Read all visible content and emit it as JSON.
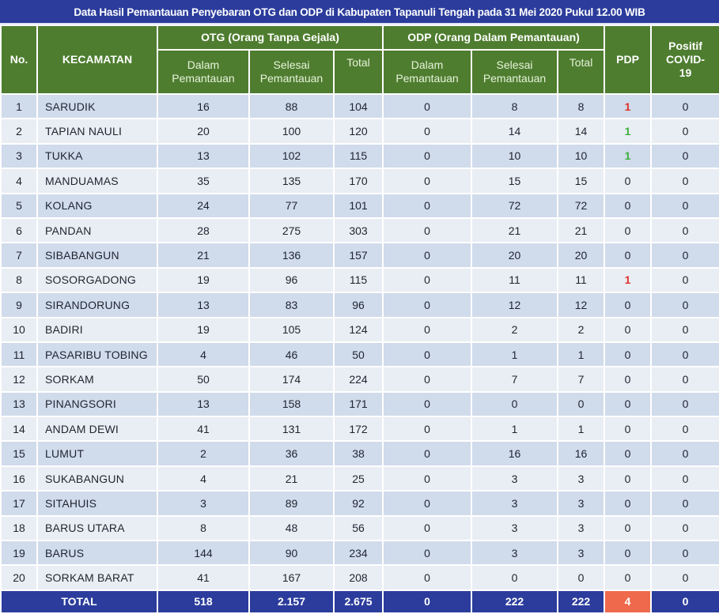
{
  "title": "Data Hasil Pemantauan Penyebaran OTG dan ODP di Kabupaten Tapanuli Tengah pada 31 Mei 2020 Pukul 12.00 WIB",
  "colors": {
    "title_bg": "#2b3c9c",
    "header_bg": "#4e7d2f",
    "row_odd_bg": "#d0dbeb",
    "row_even_bg": "#e9edf4",
    "total_bg": "#2b3c9c",
    "pdp_total_bg": "#ef6a4c",
    "pdp_red": "#e0302c",
    "pdp_green": "#3cae3c"
  },
  "header": {
    "no": "No.",
    "kecamatan": "KECAMATAN",
    "otg_group": "OTG (Orang Tanpa Gejala)",
    "odp_group": "ODP (Orang Dalam Pemantauan)",
    "pdp": "PDP",
    "positif": "Positif COVID-19",
    "dalam": "Dalam Pemantauan",
    "selesai": "Selesai Pemantauan",
    "total": "Total"
  },
  "rows": [
    {
      "no": "1",
      "kecamatan": "SARUDIK",
      "otg_dalam": "16",
      "otg_selesai": "88",
      "otg_total": "104",
      "odp_dalam": "0",
      "odp_selesai": "8",
      "odp_total": "8",
      "pdp": "1",
      "pdp_color": "red",
      "positif": "0"
    },
    {
      "no": "2",
      "kecamatan": "TAPIAN NAULI",
      "otg_dalam": "20",
      "otg_selesai": "100",
      "otg_total": "120",
      "odp_dalam": "0",
      "odp_selesai": "14",
      "odp_total": "14",
      "pdp": "1",
      "pdp_color": "green",
      "positif": "0"
    },
    {
      "no": "3",
      "kecamatan": "TUKKA",
      "otg_dalam": "13",
      "otg_selesai": "102",
      "otg_total": "115",
      "odp_dalam": "0",
      "odp_selesai": "10",
      "odp_total": "10",
      "pdp": "1",
      "pdp_color": "green",
      "positif": "0"
    },
    {
      "no": "4",
      "kecamatan": "MANDUAMAS",
      "otg_dalam": "35",
      "otg_selesai": "135",
      "otg_total": "170",
      "odp_dalam": "0",
      "odp_selesai": "15",
      "odp_total": "15",
      "pdp": "0",
      "pdp_color": "",
      "positif": "0"
    },
    {
      "no": "5",
      "kecamatan": "KOLANG",
      "otg_dalam": "24",
      "otg_selesai": "77",
      "otg_total": "101",
      "odp_dalam": "0",
      "odp_selesai": "72",
      "odp_total": "72",
      "pdp": "0",
      "pdp_color": "",
      "positif": "0"
    },
    {
      "no": "6",
      "kecamatan": "PANDAN",
      "otg_dalam": "28",
      "otg_selesai": "275",
      "otg_total": "303",
      "odp_dalam": "0",
      "odp_selesai": "21",
      "odp_total": "21",
      "pdp": "0",
      "pdp_color": "",
      "positif": "0"
    },
    {
      "no": "7",
      "kecamatan": "SIBABANGUN",
      "otg_dalam": "21",
      "otg_selesai": "136",
      "otg_total": "157",
      "odp_dalam": "0",
      "odp_selesai": "20",
      "odp_total": "20",
      "pdp": "0",
      "pdp_color": "",
      "positif": "0"
    },
    {
      "no": "8",
      "kecamatan": "SOSORGADONG",
      "otg_dalam": "19",
      "otg_selesai": "96",
      "otg_total": "115",
      "odp_dalam": "0",
      "odp_selesai": "11",
      "odp_total": "11",
      "pdp": "1",
      "pdp_color": "red",
      "positif": "0"
    },
    {
      "no": "9",
      "kecamatan": "SIRANDORUNG",
      "otg_dalam": "13",
      "otg_selesai": "83",
      "otg_total": "96",
      "odp_dalam": "0",
      "odp_selesai": "12",
      "odp_total": "12",
      "pdp": "0",
      "pdp_color": "",
      "positif": "0"
    },
    {
      "no": "10",
      "kecamatan": "BADIRI",
      "otg_dalam": "19",
      "otg_selesai": "105",
      "otg_total": "124",
      "odp_dalam": "0",
      "odp_selesai": "2",
      "odp_total": "2",
      "pdp": "0",
      "pdp_color": "",
      "positif": "0"
    },
    {
      "no": "11",
      "kecamatan": "PASARIBU TOBING",
      "otg_dalam": "4",
      "otg_selesai": "46",
      "otg_total": "50",
      "odp_dalam": "0",
      "odp_selesai": "1",
      "odp_total": "1",
      "pdp": "0",
      "pdp_color": "",
      "positif": "0"
    },
    {
      "no": "12",
      "kecamatan": "SORKAM",
      "otg_dalam": "50",
      "otg_selesai": "174",
      "otg_total": "224",
      "odp_dalam": "0",
      "odp_selesai": "7",
      "odp_total": "7",
      "pdp": "0",
      "pdp_color": "",
      "positif": "0"
    },
    {
      "no": "13",
      "kecamatan": "PINANGSORI",
      "otg_dalam": "13",
      "otg_selesai": "158",
      "otg_total": "171",
      "odp_dalam": "0",
      "odp_selesai": "0",
      "odp_total": "0",
      "pdp": "0",
      "pdp_color": "",
      "positif": "0"
    },
    {
      "no": "14",
      "kecamatan": "ANDAM DEWI",
      "otg_dalam": "41",
      "otg_selesai": "131",
      "otg_total": "172",
      "odp_dalam": "0",
      "odp_selesai": "1",
      "odp_total": "1",
      "pdp": "0",
      "pdp_color": "",
      "positif": "0"
    },
    {
      "no": "15",
      "kecamatan": "LUMUT",
      "otg_dalam": "2",
      "otg_selesai": "36",
      "otg_total": "38",
      "odp_dalam": "0",
      "odp_selesai": "16",
      "odp_total": "16",
      "pdp": "0",
      "pdp_color": "",
      "positif": "0"
    },
    {
      "no": "16",
      "kecamatan": "SUKABANGUN",
      "otg_dalam": "4",
      "otg_selesai": "21",
      "otg_total": "25",
      "odp_dalam": "0",
      "odp_selesai": "3",
      "odp_total": "3",
      "pdp": "0",
      "pdp_color": "",
      "positif": "0"
    },
    {
      "no": "17",
      "kecamatan": "SITAHUIS",
      "otg_dalam": "3",
      "otg_selesai": "89",
      "otg_total": "92",
      "odp_dalam": "0",
      "odp_selesai": "3",
      "odp_total": "3",
      "pdp": "0",
      "pdp_color": "",
      "positif": "0"
    },
    {
      "no": "18",
      "kecamatan": "BARUS UTARA",
      "otg_dalam": "8",
      "otg_selesai": "48",
      "otg_total": "56",
      "odp_dalam": "0",
      "odp_selesai": "3",
      "odp_total": "3",
      "pdp": "0",
      "pdp_color": "",
      "positif": "0"
    },
    {
      "no": "19",
      "kecamatan": "BARUS",
      "otg_dalam": "144",
      "otg_selesai": "90",
      "otg_total": "234",
      "odp_dalam": "0",
      "odp_selesai": "3",
      "odp_total": "3",
      "pdp": "0",
      "pdp_color": "",
      "positif": "0"
    },
    {
      "no": "20",
      "kecamatan": "SORKAM BARAT",
      "otg_dalam": "41",
      "otg_selesai": "167",
      "otg_total": "208",
      "odp_dalam": "0",
      "odp_selesai": "0",
      "odp_total": "0",
      "pdp": "0",
      "pdp_color": "",
      "positif": "0"
    }
  ],
  "total": {
    "label": "TOTAL",
    "otg_dalam": "518",
    "otg_selesai": "2.157",
    "otg_total": "2.675",
    "odp_dalam": "0",
    "odp_selesai": "222",
    "odp_total": "222",
    "pdp": "4",
    "positif": "0"
  }
}
